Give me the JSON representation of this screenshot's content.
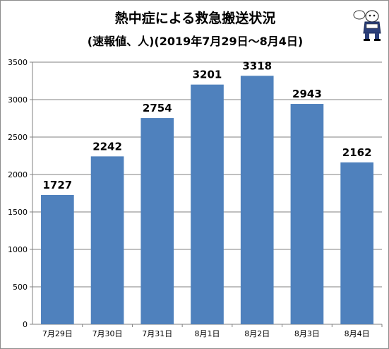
{
  "chart_data": {
    "type": "bar",
    "title": "熱中症による救急搬送状況",
    "subtitle": "(速報値、人)(2019年7月29日～8月4日)",
    "categories": [
      "7月29日",
      "7月30日",
      "7月31日",
      "8月1日",
      "8月2日",
      "8月3日",
      "8月4日"
    ],
    "values": [
      1727,
      2242,
      2754,
      3201,
      3318,
      2943,
      2162
    ],
    "ylim": [
      0,
      3500
    ],
    "yticks": [
      0,
      500,
      1000,
      1500,
      2000,
      2500,
      3000,
      3500
    ],
    "grid": true,
    "bar_color": "#4f81bd",
    "legend": "none"
  },
  "mascot": {
    "icon": "mascot-character-icon"
  }
}
